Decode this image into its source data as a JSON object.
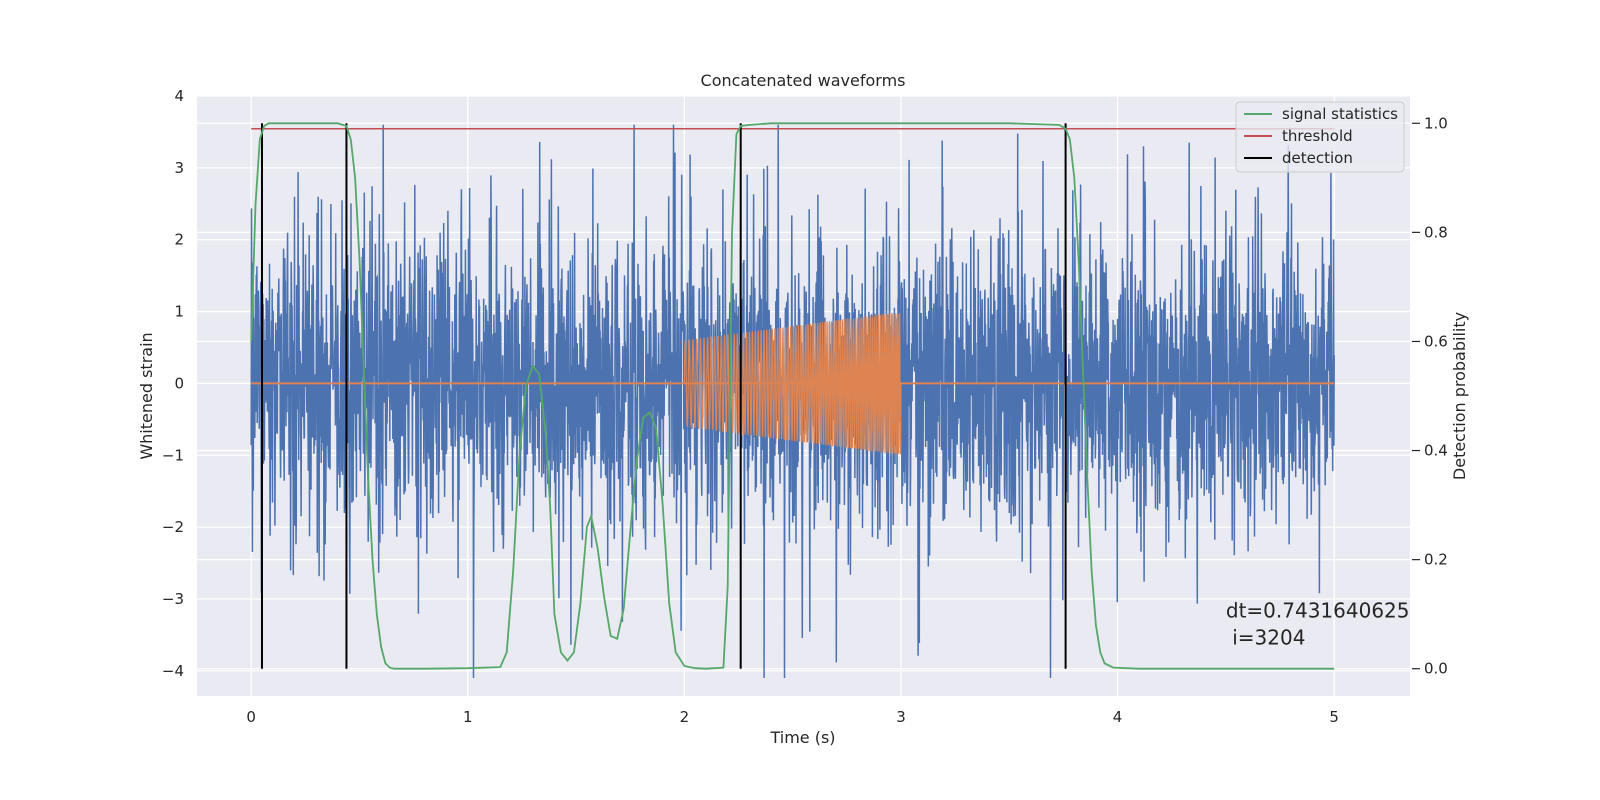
{
  "chart_data": {
    "type": "line",
    "title": "Concatenated waveforms",
    "xlabel": "Time (s)",
    "ylabel": "Whitened strain",
    "y2label": "Detection probability",
    "xlim": [
      -0.25,
      5.35
    ],
    "ylim": [
      -4.35,
      4.0
    ],
    "y2lim": [
      -0.05,
      1.05
    ],
    "x_ticks": [
      0,
      1,
      2,
      3,
      4,
      5
    ],
    "y_ticks": [
      -4,
      -3,
      -2,
      -1,
      0,
      1,
      2,
      3,
      4
    ],
    "y2_ticks": [
      0.0,
      0.2,
      0.4,
      0.6,
      0.8,
      1.0
    ],
    "x_tick_labels": [
      "0",
      "1",
      "2",
      "3",
      "4",
      "5"
    ],
    "y_tick_labels": [
      "−4",
      "−3",
      "−2",
      "−1",
      "0",
      "1",
      "2",
      "3",
      "4"
    ],
    "y2_tick_labels": [
      "0.0",
      "0.2",
      "0.4",
      "0.6",
      "0.8",
      "1.0"
    ],
    "grid": true,
    "legend_position": "top-right",
    "background": "#EAEAF2",
    "noise": {
      "color": "#4C72B0",
      "t_start": 0.0,
      "t_end": 5.0,
      "typical_amplitude": 1.0,
      "peak_amplitude": 3.6,
      "min_value": -4.1
    },
    "injected_signal": {
      "color": "#DD8452",
      "t_start": 2.0,
      "t_end": 3.0,
      "amp_start": 0.6,
      "amp_end": 1.0,
      "baseline": 0.0
    },
    "series": [
      {
        "name": "signal statistics",
        "axis": "right",
        "color": "#55A868",
        "x": [
          0.0,
          0.02,
          0.04,
          0.06,
          0.08,
          0.1,
          0.2,
          0.3,
          0.4,
          0.44,
          0.46,
          0.48,
          0.5,
          0.52,
          0.54,
          0.56,
          0.58,
          0.6,
          0.62,
          0.64,
          0.66,
          0.7,
          0.8,
          1.0,
          1.15,
          1.18,
          1.21,
          1.24,
          1.27,
          1.3,
          1.33,
          1.36,
          1.38,
          1.4,
          1.43,
          1.46,
          1.49,
          1.52,
          1.55,
          1.57,
          1.6,
          1.63,
          1.66,
          1.69,
          1.72,
          1.75,
          1.78,
          1.81,
          1.84,
          1.87,
          1.9,
          1.93,
          1.96,
          2.0,
          2.05,
          2.1,
          2.18,
          2.2,
          2.22,
          2.24,
          2.26,
          2.3,
          2.4,
          2.6,
          3.0,
          3.5,
          3.73,
          3.76,
          3.78,
          3.8,
          3.82,
          3.84,
          3.86,
          3.88,
          3.9,
          3.92,
          3.94,
          3.98,
          4.1,
          4.5,
          5.0
        ],
        "values": [
          0.6,
          0.85,
          0.97,
          0.995,
          1.0,
          1.0,
          1.0,
          1.0,
          1.0,
          0.995,
          0.97,
          0.9,
          0.75,
          0.55,
          0.35,
          0.2,
          0.1,
          0.04,
          0.01,
          0.002,
          0.0,
          0.0,
          0.0,
          0.001,
          0.003,
          0.03,
          0.18,
          0.4,
          0.52,
          0.555,
          0.54,
          0.43,
          0.3,
          0.1,
          0.03,
          0.015,
          0.03,
          0.12,
          0.26,
          0.28,
          0.22,
          0.13,
          0.06,
          0.055,
          0.11,
          0.25,
          0.38,
          0.46,
          0.47,
          0.44,
          0.3,
          0.12,
          0.03,
          0.005,
          0.001,
          0.0,
          0.002,
          0.15,
          0.8,
          0.98,
          0.995,
          0.997,
          1.0,
          1.0,
          1.0,
          1.0,
          0.997,
          0.99,
          0.97,
          0.9,
          0.75,
          0.55,
          0.35,
          0.18,
          0.08,
          0.03,
          0.01,
          0.002,
          0.0,
          0.0,
          0.0
        ]
      },
      {
        "name": "threshold",
        "axis": "right",
        "color": "#C44E52",
        "x": [
          0.0,
          5.0
        ],
        "values": [
          0.99,
          0.99
        ]
      },
      {
        "name": "detection",
        "axis": "right",
        "color": "#000000",
        "vlines": [
          0.05,
          0.44,
          2.26,
          3.76
        ],
        "ymin": 0.0,
        "ymax": 1.0
      }
    ],
    "annotation": {
      "lines": [
        "dt=0.7431640625",
        " i=3204"
      ],
      "x": 4.5,
      "y": -3.3
    }
  }
}
